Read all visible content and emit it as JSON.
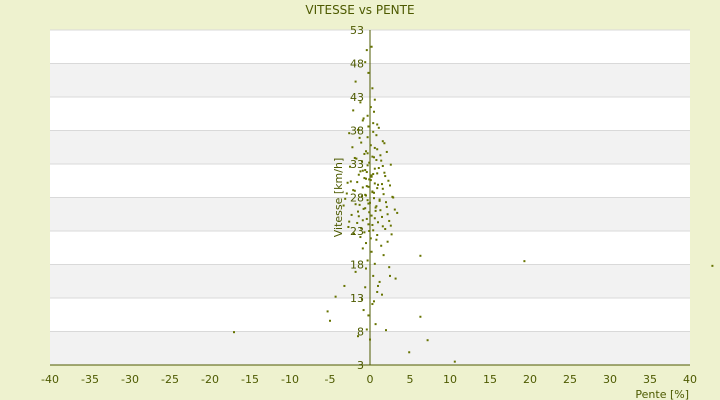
{
  "chart_data": {
    "type": "scatter",
    "title": "VITESSE vs PENTE",
    "xlabel": "Pente [%]",
    "ylabel": "Vitesse [km/h]",
    "xlim": [
      -40,
      40
    ],
    "ylim": [
      3,
      53
    ],
    "xticks": [
      "-40",
      "-35",
      "-30",
      "-25",
      "-20",
      "-15",
      "-10",
      "-5",
      "0",
      "5",
      "10",
      "15",
      "20",
      "25",
      "30",
      "35",
      "40"
    ],
    "yticks": [
      "3",
      "8",
      "13",
      "18",
      "23",
      "28",
      "33",
      "38",
      "43",
      "48",
      "53"
    ],
    "grid": true,
    "colors": {
      "points": "#667300",
      "text": "#4d5a00",
      "band_alt": "#f2f2f2",
      "background": "#eef2cf"
    },
    "points": [
      [
        -17,
        7.9
      ],
      [
        -5,
        9.6
      ],
      [
        -5.3,
        11
      ],
      [
        -4.3,
        13.2
      ],
      [
        -3.2,
        14.8
      ],
      [
        -1.5,
        7.3
      ],
      [
        -0.8,
        11.2
      ],
      [
        -0.5,
        17.4
      ],
      [
        0.5,
        12.5
      ],
      [
        1,
        14.8
      ],
      [
        1.5,
        13.5
      ],
      [
        2,
        8.2
      ],
      [
        2.5,
        16.3
      ],
      [
        3.2,
        15.9
      ],
      [
        6.3,
        19.3
      ],
      [
        6.3,
        10.2
      ],
      [
        7.2,
        6.7
      ],
      [
        4.9,
        4.9
      ],
      [
        10.6,
        3.5
      ],
      [
        19.3,
        18.5
      ],
      [
        42.8,
        17.8
      ],
      [
        -0.4,
        50
      ],
      [
        0.2,
        50.5
      ],
      [
        -0.6,
        48.2
      ],
      [
        0.3,
        44.3
      ],
      [
        -0.2,
        46.6
      ],
      [
        -1.8,
        45.3
      ],
      [
        -1.2,
        42.2
      ],
      [
        0.6,
        42.6
      ],
      [
        -2.1,
        41
      ],
      [
        -0.9,
        39.5
      ],
      [
        0.4,
        39.1
      ],
      [
        1.1,
        38.4
      ],
      [
        -1.5,
        38.1
      ],
      [
        -2.6,
        37.6
      ],
      [
        0.8,
        37.3
      ],
      [
        -0.3,
        37
      ],
      [
        1.6,
        36.4
      ],
      [
        -1.1,
        36.2
      ],
      [
        0.1,
        35.8
      ],
      [
        -2.2,
        35.5
      ],
      [
        0.9,
        35.2
      ],
      [
        2.1,
        34.8
      ],
      [
        -0.7,
        34.5
      ],
      [
        0.3,
        34.1
      ],
      [
        -1.7,
        33.8
      ],
      [
        1.4,
        33.5
      ],
      [
        -0.1,
        33.2
      ],
      [
        2.6,
        32.9
      ],
      [
        -2.5,
        32.6
      ],
      [
        0.6,
        32.3
      ],
      [
        -0.9,
        32
      ],
      [
        1.8,
        31.7
      ],
      [
        -1.4,
        31.4
      ],
      [
        0.2,
        31.1
      ],
      [
        -0.5,
        30.8
      ],
      [
        2.3,
        30.5
      ],
      [
        -2.8,
        30.2
      ],
      [
        1,
        29.9
      ],
      [
        -0.2,
        29.6
      ],
      [
        1.6,
        29.3
      ],
      [
        -1.9,
        29
      ],
      [
        0.5,
        28.7
      ],
      [
        -0.6,
        28.4
      ],
      [
        2.8,
        28.1
      ],
      [
        -3.1,
        27.8
      ],
      [
        1.2,
        27.5
      ],
      [
        0,
        27.2
      ],
      [
        -1.3,
        26.9
      ],
      [
        2.1,
        26.6
      ],
      [
        -0.8,
        26.3
      ],
      [
        0.7,
        26
      ],
      [
        3.4,
        25.7
      ],
      [
        -2.3,
        25.4
      ],
      [
        1.5,
        25.1
      ],
      [
        -0.4,
        24.8
      ],
      [
        2.4,
        24.5
      ],
      [
        -1.6,
        24.2
      ],
      [
        0.3,
        23.9
      ],
      [
        -2.7,
        23.6
      ],
      [
        1.9,
        23.3
      ],
      [
        -0.1,
        23
      ],
      [
        2.7,
        22.5
      ],
      [
        -1.2,
        22.1
      ],
      [
        0.8,
        21.7
      ],
      [
        -0.5,
        21.2
      ],
      [
        1.4,
        20.8
      ],
      [
        -0.9,
        20.4
      ],
      [
        0.2,
        19.9
      ],
      [
        1.7,
        19.4
      ],
      [
        -0.3,
        18.6
      ],
      [
        0.6,
        18.1
      ],
      [
        2.4,
        17.6
      ],
      [
        -1.8,
        16.9
      ],
      [
        0.4,
        16.3
      ],
      [
        1.2,
        15.4
      ],
      [
        -0.6,
        14.6
      ],
      [
        0.9,
        13.9
      ],
      [
        -1,
        12.8
      ],
      [
        0.3,
        12.1
      ],
      [
        -0.2,
        10.4
      ],
      [
        0.7,
        9.1
      ],
      [
        -0.4,
        8.3
      ],
      [
        0,
        6.8
      ],
      [
        -0.3,
        40.2
      ],
      [
        0.5,
        40.8
      ],
      [
        0.1,
        41.5
      ],
      [
        -0.8,
        39.8
      ],
      [
        0.9,
        38.9
      ],
      [
        -0.2,
        38.6
      ],
      [
        0.4,
        37.8
      ],
      [
        -1.3,
        36.9
      ],
      [
        1.8,
        36.1
      ],
      [
        0.6,
        35.4
      ],
      [
        -0.5,
        34.9
      ],
      [
        1.3,
        34.3
      ],
      [
        -1.9,
        33.9
      ],
      [
        0.8,
        33.6
      ],
      [
        -0.3,
        32.8
      ],
      [
        1.1,
        32.4
      ],
      [
        -1.2,
        31.9
      ],
      [
        0.4,
        31.5
      ],
      [
        1.9,
        31.2
      ],
      [
        -0.7,
        30.9
      ],
      [
        0.1,
        30.6
      ],
      [
        -1.6,
        30.3
      ],
      [
        1.5,
        30
      ],
      [
        -0.4,
        29.7
      ],
      [
        0.9,
        29.4
      ],
      [
        -2.1,
        29.1
      ],
      [
        0.3,
        28.8
      ],
      [
        1.7,
        28.5
      ],
      [
        -1,
        28.2
      ],
      [
        0.5,
        27.9
      ],
      [
        -0.3,
        27.6
      ],
      [
        2,
        27.3
      ],
      [
        -1.8,
        27
      ],
      [
        0.8,
        26.7
      ],
      [
        -0.6,
        26.4
      ],
      [
        1.3,
        26.1
      ],
      [
        -0.1,
        25.8
      ],
      [
        2.2,
        25.5
      ],
      [
        -1.4,
        25.2
      ],
      [
        0.6,
        24.9
      ],
      [
        -0.9,
        24.6
      ],
      [
        1,
        24.3
      ],
      [
        -0.2,
        24
      ],
      [
        1.6,
        23.7
      ],
      [
        -1.1,
        23.4
      ],
      [
        0.4,
        23.1
      ],
      [
        -0.7,
        22.8
      ],
      [
        0.9,
        22.4
      ],
      [
        0.1,
        21.9
      ],
      [
        -0.4,
        31.8
      ],
      [
        0.2,
        31.3
      ],
      [
        -0.1,
        30.7
      ],
      [
        0.6,
        30.1
      ],
      [
        -0.9,
        29.5
      ],
      [
        0.3,
        28.9
      ],
      [
        -0.5,
        28.3
      ],
      [
        1.2,
        27.7
      ],
      [
        -0.2,
        27.1
      ],
      [
        0.7,
        26.5
      ],
      [
        -1.5,
        25.9
      ],
      [
        0.2,
        25.3
      ],
      [
        -0.3,
        34.6
      ],
      [
        0.5,
        34
      ],
      [
        -1,
        33.4
      ],
      [
        1.6,
        32.7
      ],
      [
        -0.6,
        32.1
      ],
      [
        0.9,
        31.6
      ],
      [
        -2.4,
        30.4
      ],
      [
        2.5,
        29.8
      ],
      [
        -2.9,
        28.6
      ],
      [
        2.9,
        28
      ],
      [
        -3.3,
        26.8
      ],
      [
        3.1,
        26.2
      ],
      [
        -2.6,
        24.4
      ],
      [
        2.6,
        23.8
      ],
      [
        -2,
        22.6
      ],
      [
        2.2,
        21.4
      ]
    ]
  }
}
